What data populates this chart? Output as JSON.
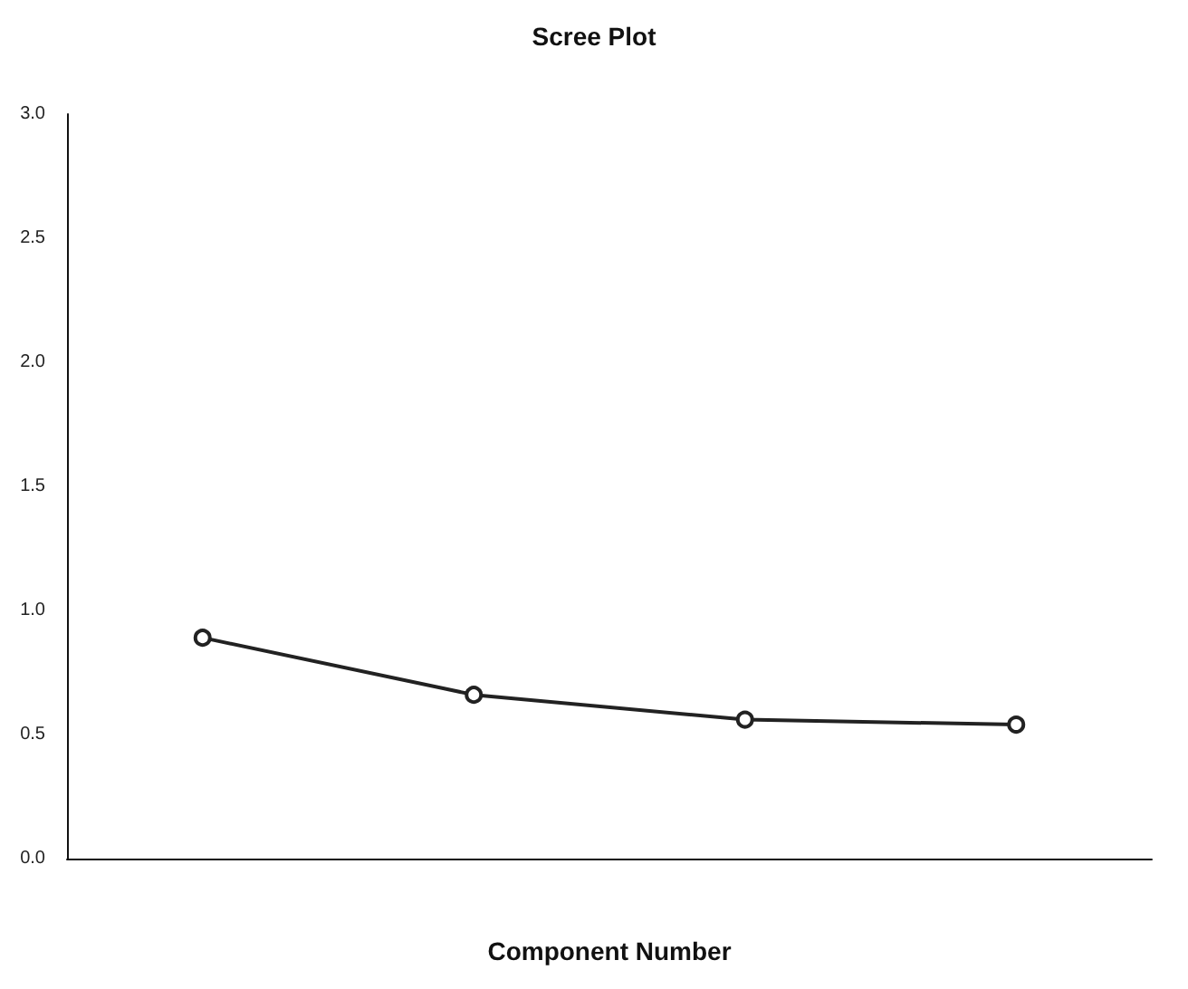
{
  "chart_data": {
    "type": "line",
    "title": "Scree Plot",
    "xlabel": "Component Number",
    "categories": [
      null,
      null,
      null,
      null
    ],
    "series": [
      {
        "color": "#222222",
        "values": [
          0.89,
          0.66,
          0.56,
          0.54
        ]
      }
    ],
    "ylim": [
      0,
      3
    ],
    "yticks": [
      {
        "value": 0,
        "label": "0.0"
      },
      {
        "value": 0.5,
        "label": "0.5"
      },
      {
        "value": 1,
        "label": "1.0"
      },
      {
        "value": 1.5,
        "label": "1.5"
      },
      {
        "value": 2,
        "label": "2.0"
      },
      {
        "value": 2.5,
        "label": "2.5"
      },
      {
        "value": 3,
        "label": "3.0"
      }
    ],
    "marker": "circle",
    "line_style": "solid",
    "grid": false,
    "tick_labels": "y"
  }
}
